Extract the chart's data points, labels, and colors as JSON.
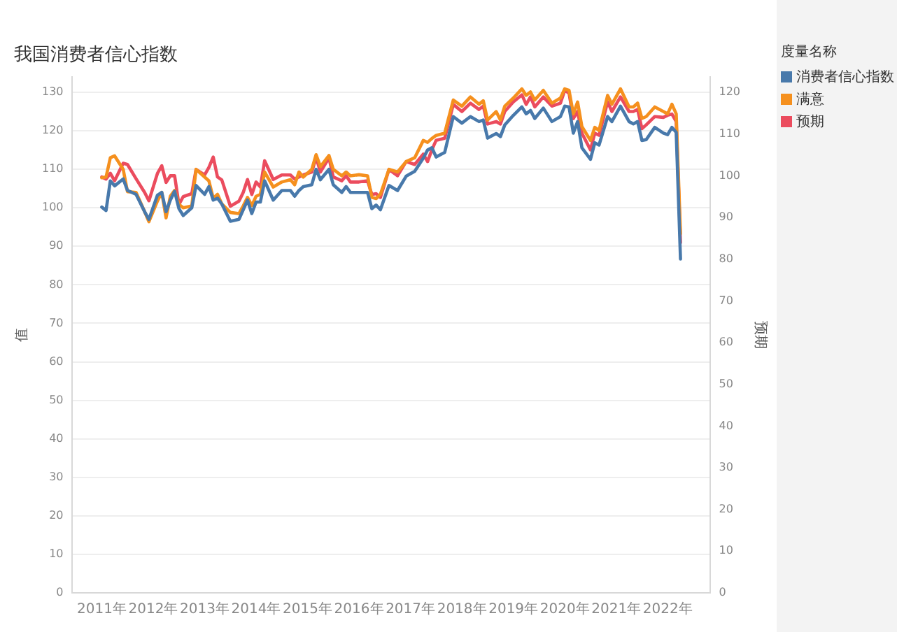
{
  "chart_data": {
    "type": "line",
    "title": "我国消费者信心指数",
    "ylabel": "值",
    "y2label": "预期",
    "legend_title": "度量名称",
    "x": [
      "2011-01",
      "2011-02",
      "2011-03",
      "2011-04",
      "2011-06",
      "2011-07",
      "2011-09",
      "2011-11",
      "2011-12",
      "2012-02",
      "2012-03",
      "2012-04",
      "2012-05",
      "2012-06",
      "2012-07",
      "2012-08",
      "2012-10",
      "2012-11",
      "2013-01",
      "2013-02",
      "2013-03",
      "2013-04",
      "2013-05",
      "2013-07",
      "2013-09",
      "2013-10",
      "2013-11",
      "2013-12",
      "2014-01",
      "2014-02",
      "2014-03",
      "2014-05",
      "2014-07",
      "2014-09",
      "2014-10",
      "2014-11",
      "2014-12",
      "2015-02",
      "2015-03",
      "2015-04",
      "2015-06",
      "2015-07",
      "2015-09",
      "2015-10",
      "2015-11",
      "2016-01",
      "2016-03",
      "2016-04",
      "2016-05",
      "2016-06",
      "2016-08",
      "2016-10",
      "2016-12",
      "2017-02",
      "2017-04",
      "2017-05",
      "2017-06",
      "2017-07",
      "2017-09",
      "2017-11",
      "2018-01",
      "2018-03",
      "2018-05",
      "2018-06",
      "2018-07",
      "2018-09",
      "2018-10",
      "2018-11",
      "2019-01",
      "2019-03",
      "2019-04",
      "2019-05",
      "2019-06",
      "2019-08",
      "2019-10",
      "2019-12",
      "2020-01",
      "2020-02",
      "2020-03",
      "2020-04",
      "2020-05",
      "2020-07",
      "2020-08",
      "2020-09",
      "2020-11",
      "2020-12",
      "2021-02",
      "2021-04",
      "2021-05",
      "2021-06",
      "2021-07",
      "2021-08",
      "2021-10",
      "2021-12",
      "2022-01",
      "2022-02",
      "2022-03",
      "2022-04"
    ],
    "series": [
      {
        "name": "消费者信心指数",
        "color": "#4879ab",
        "values": [
          100.2,
          99.3,
          107,
          105.7,
          107.5,
          104.5,
          103.5,
          99,
          97,
          103.3,
          104,
          99,
          102,
          104.3,
          99.8,
          98,
          100,
          105.8,
          103.5,
          105.5,
          102,
          102.5,
          101,
          96.5,
          97,
          99.5,
          102,
          98.5,
          101.5,
          101.5,
          107,
          102,
          104.5,
          104.5,
          103,
          104.5,
          105.5,
          106,
          110,
          107.3,
          110,
          106,
          104,
          105.5,
          104,
          104,
          104,
          99.8,
          100.7,
          99.5,
          105.8,
          104.5,
          108.2,
          109.5,
          112.9,
          115,
          115.6,
          113.2,
          114.4,
          123.7,
          122,
          123.7,
          122.4,
          122.8,
          118.1,
          119.3,
          118.5,
          121.5,
          124,
          126.2,
          124.4,
          125.3,
          123.2,
          125.9,
          122.4,
          123.7,
          126.4,
          126.2,
          119.4,
          122.4,
          115.6,
          112.6,
          116.9,
          116.3,
          123.7,
          122.4,
          126.4,
          122.4,
          121.8,
          122.4,
          117.5,
          117.7,
          120.9,
          119.4,
          119,
          120.9,
          119.6,
          86.7
        ]
      },
      {
        "name": "满意",
        "color": "#f5901e",
        "values": [
          107.8,
          108,
          113,
          113.5,
          110,
          104.2,
          104,
          99,
          96.4,
          101.8,
          104,
          97.4,
          103,
          104.5,
          100.9,
          100,
          100.5,
          110,
          108,
          107,
          102.5,
          103.5,
          101,
          98.8,
          98.5,
          100.5,
          102.7,
          100.6,
          103,
          103.5,
          109.3,
          105.4,
          106.7,
          107.3,
          106,
          109.3,
          108,
          110,
          113.8,
          110.7,
          113.6,
          110,
          108.3,
          109.3,
          108.3,
          108.6,
          108.3,
          102.7,
          102.4,
          103.5,
          110,
          109.3,
          112,
          113,
          117.5,
          117,
          118,
          118.8,
          119.4,
          128,
          126.4,
          128.8,
          126.9,
          127.8,
          122.8,
          125,
          122.8,
          126.4,
          128.5,
          130.9,
          129.2,
          130.1,
          128,
          130.5,
          127.2,
          128.5,
          130.9,
          130.5,
          124.4,
          127.5,
          121.1,
          117.5,
          120.9,
          120.1,
          129.2,
          126.9,
          130.9,
          126.2,
          126.2,
          127.2,
          123.2,
          123.7,
          126.2,
          125,
          124.4,
          126.9,
          124.4,
          93.3
        ]
      },
      {
        "name": "预期",
        "color": "#eb4c5e",
        "axis": "y2",
        "values": [
          99.7,
          99.2,
          100.6,
          98.8,
          103,
          102.7,
          99.3,
          96,
          94,
          100.6,
          102.4,
          98.4,
          100,
          100,
          93.1,
          95,
          95.7,
          101.5,
          100.2,
          102,
          104.5,
          99.7,
          99,
          92.7,
          93.9,
          96,
          99.1,
          95.5,
          98.5,
          97.3,
          103.6,
          99.1,
          100.2,
          100.2,
          99.2,
          99.7,
          100.2,
          100.9,
          104.5,
          100.9,
          104.3,
          99.7,
          98.8,
          100,
          98.5,
          98.5,
          98.8,
          95.5,
          95.7,
          94.8,
          101.5,
          100,
          103.4,
          102.7,
          105.2,
          103.4,
          106.2,
          108.5,
          109,
          117.1,
          115.4,
          117.4,
          115.9,
          116.7,
          112.4,
          113,
          112.4,
          115.4,
          117.7,
          119.4,
          117.1,
          118.9,
          116.5,
          118.9,
          116.7,
          117.4,
          120.5,
          119.8,
          113.7,
          115.4,
          110.2,
          106.2,
          110.2,
          109.7,
          117.7,
          115.4,
          118.9,
          115.4,
          115.4,
          115.9,
          111.3,
          112.2,
          114.2,
          114,
          114.5,
          114.8,
          113,
          84
        ]
      }
    ],
    "xlim": [
      "2010-06",
      "2022-11"
    ],
    "xticks": [
      {
        "value": "2011-01",
        "label": "2011年"
      },
      {
        "value": "2012-01",
        "label": "2012年"
      },
      {
        "value": "2013-01",
        "label": "2013年"
      },
      {
        "value": "2014-01",
        "label": "2014年"
      },
      {
        "value": "2015-01",
        "label": "2015年"
      },
      {
        "value": "2016-01",
        "label": "2016年"
      },
      {
        "value": "2017-01",
        "label": "2017年"
      },
      {
        "value": "2018-01",
        "label": "2018年"
      },
      {
        "value": "2019-01",
        "label": "2019年"
      },
      {
        "value": "2020-01",
        "label": "2020年"
      },
      {
        "value": "2021-01",
        "label": "2021年"
      },
      {
        "value": "2022-01",
        "label": "2022年"
      }
    ],
    "ylim": [
      0,
      134
    ],
    "yticks": [
      0,
      10,
      20,
      30,
      40,
      50,
      60,
      70,
      80,
      90,
      100,
      110,
      120,
      130
    ],
    "y2lim": [
      0,
      123.7
    ],
    "y2ticks": [
      0,
      10,
      20,
      30,
      40,
      50,
      60,
      70,
      80,
      90,
      100,
      110,
      120
    ],
    "grid": "y",
    "legend": "right",
    "marker": "none",
    "line_style": "solid"
  }
}
